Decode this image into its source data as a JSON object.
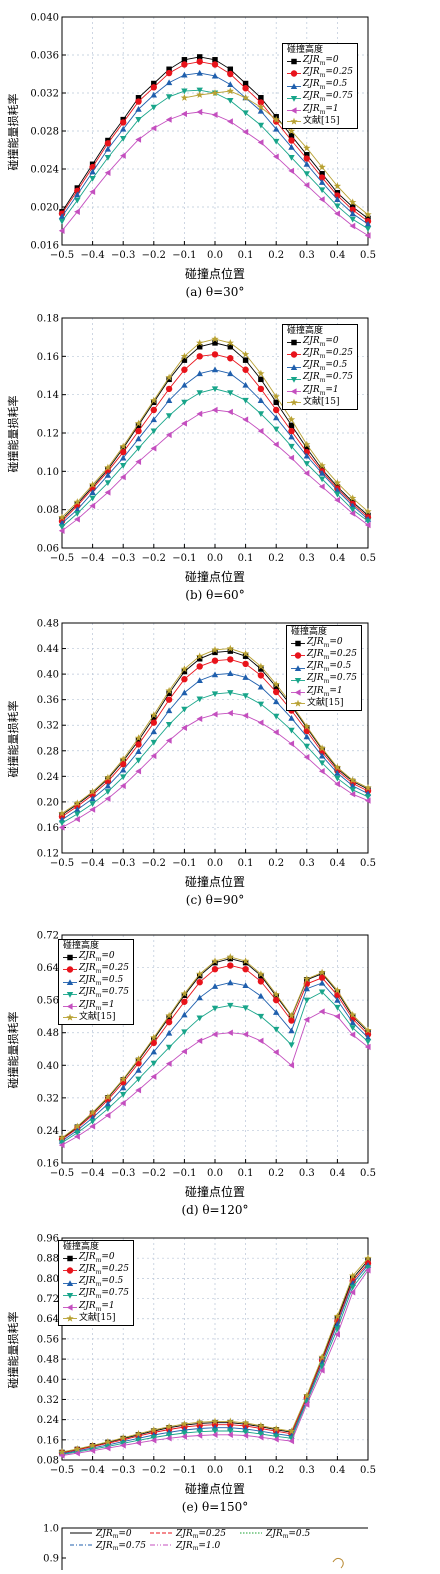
{
  "ylabel": "碰撞能量损耗率",
  "xlabel": "碰撞点位置",
  "legend_title": "碰撞高度",
  "colors": {
    "s0": "#000000",
    "s1": "#e8131b",
    "s2": "#1f5fad",
    "s3": "#18a58a",
    "s4": "#c44fbf",
    "s5": "#b8a132"
  },
  "chart_data": [
    {
      "type": "line",
      "caption": "(a) θ=30°",
      "x": [
        -0.5,
        -0.45,
        -0.4,
        -0.35,
        -0.3,
        -0.25,
        -0.2,
        -0.15,
        -0.1,
        -0.05,
        0.0,
        0.05,
        0.1,
        0.15,
        0.2,
        0.25,
        0.3,
        0.35,
        0.4,
        0.45,
        0.5
      ],
      "ylim": [
        0.016,
        0.04
      ],
      "yticks": [
        "0.016",
        "0.020",
        "0.024",
        "0.028",
        "0.032",
        "0.036",
        "0.040"
      ],
      "xticks": [
        "−0.5",
        "−0.4",
        "−0.3",
        "−0.2",
        "−0.1",
        "0.0",
        "0.1",
        "0.2",
        "0.3",
        "0.4",
        "0.5"
      ],
      "series": [
        {
          "name": "ZJR_m=0",
          "values": [
            0.0195,
            0.022,
            0.0245,
            0.027,
            0.0292,
            0.0315,
            0.033,
            0.0345,
            0.0355,
            0.0358,
            0.0355,
            0.0345,
            0.033,
            0.0315,
            0.0295,
            0.0275,
            0.0255,
            0.0235,
            0.0215,
            0.02,
            0.0188
          ]
        },
        {
          "name": "ZJR_m=0.25",
          "values": [
            0.0193,
            0.0217,
            0.0242,
            0.0267,
            0.0289,
            0.0311,
            0.0326,
            0.0341,
            0.035,
            0.0353,
            0.035,
            0.034,
            0.0325,
            0.031,
            0.029,
            0.027,
            0.0251,
            0.0231,
            0.0212,
            0.0197,
            0.0185
          ]
        },
        {
          "name": "ZJR_m=0.5",
          "values": [
            0.019,
            0.0213,
            0.0237,
            0.0261,
            0.0282,
            0.0303,
            0.0318,
            0.0331,
            0.0339,
            0.0341,
            0.0338,
            0.0329,
            0.0315,
            0.0301,
            0.0282,
            0.0263,
            0.0245,
            0.0226,
            0.0208,
            0.0193,
            0.0182
          ]
        },
        {
          "name": "ZJR_m=0.75",
          "values": [
            0.0185,
            0.0207,
            0.023,
            0.0252,
            0.0272,
            0.0292,
            0.0305,
            0.0316,
            0.0322,
            0.0323,
            0.032,
            0.0312,
            0.0299,
            0.0286,
            0.0269,
            0.0252,
            0.0235,
            0.0218,
            0.0201,
            0.0187,
            0.0177
          ]
        },
        {
          "name": "ZJR_m=1",
          "values": [
            0.0175,
            0.0195,
            0.0216,
            0.0236,
            0.0254,
            0.0271,
            0.0283,
            0.0292,
            0.0298,
            0.03,
            0.0297,
            0.029,
            0.0279,
            0.0268,
            0.0253,
            0.0238,
            0.0223,
            0.0208,
            0.0193,
            0.018,
            0.017
          ]
        },
        {
          "name": "文献[15]",
          "values": [
            null,
            null,
            null,
            null,
            null,
            null,
            null,
            null,
            0.0315,
            0.0318,
            0.032,
            0.0322,
            0.0315,
            0.0305,
            0.0292,
            0.028,
            0.0262,
            0.0242,
            0.0222,
            0.0205,
            0.0192
          ]
        }
      ]
    },
    {
      "type": "line",
      "caption": "(b) θ=60°",
      "x": [
        -0.5,
        -0.45,
        -0.4,
        -0.35,
        -0.3,
        -0.25,
        -0.2,
        -0.15,
        -0.1,
        -0.05,
        0.0,
        0.05,
        0.1,
        0.15,
        0.2,
        0.25,
        0.3,
        0.35,
        0.4,
        0.45,
        0.5
      ],
      "ylim": [
        0.06,
        0.18
      ],
      "yticks": [
        "0.06",
        "0.08",
        "0.10",
        "0.12",
        "0.14",
        "0.16",
        "0.18"
      ],
      "xticks": [
        "−0.5",
        "−0.4",
        "−0.3",
        "−0.2",
        "−0.1",
        "0.0",
        "0.1",
        "0.2",
        "0.3",
        "0.4",
        "0.5"
      ],
      "series": [
        {
          "name": "ZJR_m=0",
          "values": [
            0.075,
            0.083,
            0.092,
            0.101,
            0.112,
            0.124,
            0.136,
            0.148,
            0.158,
            0.165,
            0.167,
            0.165,
            0.158,
            0.148,
            0.136,
            0.124,
            0.112,
            0.101,
            0.092,
            0.084,
            0.077
          ]
        },
        {
          "name": "ZJR_m=0.25",
          "values": [
            0.074,
            0.082,
            0.091,
            0.1,
            0.11,
            0.121,
            0.132,
            0.143,
            0.153,
            0.16,
            0.161,
            0.159,
            0.153,
            0.143,
            0.132,
            0.121,
            0.11,
            0.1,
            0.091,
            0.083,
            0.076
          ]
        },
        {
          "name": "ZJR_m=0.5",
          "values": [
            0.073,
            0.08,
            0.089,
            0.098,
            0.107,
            0.117,
            0.127,
            0.137,
            0.145,
            0.151,
            0.153,
            0.151,
            0.145,
            0.137,
            0.128,
            0.118,
            0.108,
            0.099,
            0.09,
            0.082,
            0.075
          ]
        },
        {
          "name": "ZJR_m=0.75",
          "values": [
            0.071,
            0.078,
            0.086,
            0.094,
            0.103,
            0.112,
            0.121,
            0.129,
            0.136,
            0.141,
            0.143,
            0.141,
            0.137,
            0.13,
            0.122,
            0.113,
            0.104,
            0.096,
            0.088,
            0.08,
            0.074
          ]
        },
        {
          "name": "ZJR_m=1",
          "values": [
            0.069,
            0.075,
            0.082,
            0.089,
            0.097,
            0.105,
            0.112,
            0.119,
            0.125,
            0.13,
            0.132,
            0.131,
            0.127,
            0.121,
            0.114,
            0.107,
            0.099,
            0.092,
            0.085,
            0.078,
            0.072
          ]
        },
        {
          "name": "文献[15]",
          "values": [
            0.076,
            0.084,
            0.093,
            0.102,
            0.113,
            0.125,
            0.137,
            0.149,
            0.16,
            0.167,
            0.169,
            0.167,
            0.161,
            0.151,
            0.139,
            0.127,
            0.114,
            0.103,
            0.094,
            0.086,
            0.079
          ]
        }
      ]
    },
    {
      "type": "line",
      "caption": "(c) θ=90°",
      "x": [
        -0.5,
        -0.45,
        -0.4,
        -0.35,
        -0.3,
        -0.25,
        -0.2,
        -0.15,
        -0.1,
        -0.05,
        0.0,
        0.05,
        0.1,
        0.15,
        0.2,
        0.25,
        0.3,
        0.35,
        0.4,
        0.45,
        0.5
      ],
      "ylim": [
        0.12,
        0.48
      ],
      "yticks": [
        "0.12",
        "0.16",
        "0.20",
        "0.24",
        "0.28",
        "0.32",
        "0.36",
        "0.40",
        "0.44",
        "0.48"
      ],
      "xticks": [
        "−0.5",
        "−0.4",
        "−0.3",
        "−0.2",
        "−0.1",
        "0.0",
        "0.1",
        "0.2",
        "0.3",
        "0.4",
        "0.5"
      ],
      "series": [
        {
          "name": "ZJR_m=0",
          "values": [
            0.18,
            0.196,
            0.214,
            0.236,
            0.264,
            0.296,
            0.332,
            0.37,
            0.404,
            0.424,
            0.434,
            0.436,
            0.428,
            0.408,
            0.38,
            0.35,
            0.316,
            0.282,
            0.252,
            0.232,
            0.22
          ]
        },
        {
          "name": "ZJR_m=0.25",
          "values": [
            0.177,
            0.193,
            0.211,
            0.232,
            0.259,
            0.29,
            0.324,
            0.36,
            0.392,
            0.412,
            0.421,
            0.423,
            0.416,
            0.398,
            0.372,
            0.343,
            0.311,
            0.278,
            0.249,
            0.229,
            0.217
          ]
        },
        {
          "name": "ZJR_m=0.5",
          "values": [
            0.172,
            0.188,
            0.205,
            0.225,
            0.25,
            0.279,
            0.31,
            0.343,
            0.371,
            0.39,
            0.399,
            0.401,
            0.395,
            0.38,
            0.357,
            0.331,
            0.302,
            0.272,
            0.245,
            0.225,
            0.213
          ]
        },
        {
          "name": "ZJR_m=0.75",
          "values": [
            0.167,
            0.181,
            0.197,
            0.216,
            0.239,
            0.265,
            0.293,
            0.321,
            0.345,
            0.361,
            0.369,
            0.371,
            0.366,
            0.353,
            0.334,
            0.312,
            0.287,
            0.261,
            0.237,
            0.219,
            0.208
          ]
        },
        {
          "name": "ZJR_m=1",
          "values": [
            0.16,
            0.173,
            0.188,
            0.205,
            0.225,
            0.248,
            0.272,
            0.296,
            0.316,
            0.33,
            0.337,
            0.339,
            0.335,
            0.324,
            0.309,
            0.291,
            0.27,
            0.248,
            0.228,
            0.212,
            0.202
          ]
        },
        {
          "name": "文献[15]",
          "values": [
            0.182,
            0.198,
            0.216,
            0.238,
            0.267,
            0.3,
            0.336,
            0.374,
            0.408,
            0.428,
            0.438,
            0.44,
            0.432,
            0.412,
            0.384,
            0.353,
            0.318,
            0.284,
            0.254,
            0.234,
            0.222
          ]
        }
      ]
    },
    {
      "type": "line",
      "caption": "(d) θ=120°",
      "x": [
        -0.5,
        -0.45,
        -0.4,
        -0.35,
        -0.3,
        -0.25,
        -0.2,
        -0.15,
        -0.1,
        -0.05,
        0.0,
        0.05,
        0.1,
        0.15,
        0.2,
        0.25,
        0.3,
        0.35,
        0.4,
        0.45,
        0.5
      ],
      "ylim": [
        0.16,
        0.72
      ],
      "yticks": [
        "0.16",
        "0.24",
        "0.32",
        "0.40",
        "0.48",
        "0.56",
        "0.64",
        "0.72"
      ],
      "xticks": [
        "−0.5",
        "−0.4",
        "−0.3",
        "−0.2",
        "−0.1",
        "0.0",
        "0.1",
        "0.2",
        "0.3",
        "0.4",
        "0.5"
      ],
      "series": [
        {
          "name": "ZJR_m=0",
          "values": [
            0.22,
            0.248,
            0.282,
            0.32,
            0.364,
            0.412,
            0.464,
            0.518,
            0.572,
            0.62,
            0.652,
            0.662,
            0.652,
            0.62,
            0.57,
            0.52,
            0.61,
            0.625,
            0.58,
            0.52,
            0.482
          ]
        },
        {
          "name": "ZJR_m=0.25",
          "values": [
            0.218,
            0.245,
            0.278,
            0.315,
            0.358,
            0.405,
            0.455,
            0.506,
            0.556,
            0.604,
            0.636,
            0.645,
            0.636,
            0.606,
            0.56,
            0.51,
            0.6,
            0.615,
            0.572,
            0.514,
            0.476
          ]
        },
        {
          "name": "ZJR_m=0.5",
          "values": [
            0.214,
            0.24,
            0.271,
            0.305,
            0.345,
            0.388,
            0.433,
            0.479,
            0.524,
            0.566,
            0.594,
            0.603,
            0.596,
            0.57,
            0.53,
            0.485,
            0.588,
            0.602,
            0.56,
            0.505,
            0.468
          ]
        },
        {
          "name": "ZJR_m=0.75",
          "values": [
            0.21,
            0.234,
            0.262,
            0.293,
            0.328,
            0.366,
            0.405,
            0.444,
            0.482,
            0.516,
            0.54,
            0.547,
            0.541,
            0.52,
            0.488,
            0.45,
            0.56,
            0.58,
            0.542,
            0.492,
            0.458
          ]
        },
        {
          "name": "ZJR_m=1",
          "values": [
            0.204,
            0.225,
            0.25,
            0.277,
            0.307,
            0.339,
            0.372,
            0.404,
            0.434,
            0.46,
            0.476,
            0.48,
            0.476,
            0.46,
            0.432,
            0.4,
            0.512,
            0.532,
            0.52,
            0.475,
            0.445
          ]
        },
        {
          "name": "文献[15]",
          "values": [
            0.222,
            0.25,
            0.284,
            0.322,
            0.366,
            0.415,
            0.468,
            0.522,
            0.576,
            0.624,
            0.656,
            0.666,
            0.656,
            0.624,
            0.574,
            0.522,
            0.612,
            0.628,
            0.584,
            0.524,
            0.486
          ]
        }
      ]
    },
    {
      "type": "line",
      "caption": "(e) θ=150°",
      "x": [
        -0.5,
        -0.45,
        -0.4,
        -0.35,
        -0.3,
        -0.25,
        -0.2,
        -0.15,
        -0.1,
        -0.05,
        0.0,
        0.05,
        0.1,
        0.15,
        0.2,
        0.25,
        0.3,
        0.35,
        0.4,
        0.45,
        0.5
      ],
      "ylim": [
        0.08,
        0.96
      ],
      "yticks": [
        "0.08",
        "0.16",
        "0.24",
        "0.32",
        "0.40",
        "0.48",
        "0.56",
        "0.64",
        "0.72",
        "0.80",
        "0.88",
        "0.96"
      ],
      "xticks": [
        "−0.5",
        "−0.4",
        "−0.3",
        "−0.2",
        "−0.1",
        "0.0",
        "0.1",
        "0.2",
        "0.3",
        "0.4",
        "0.5"
      ],
      "series": [
        {
          "name": "ZJR_m=0",
          "values": [
            0.11,
            0.122,
            0.136,
            0.15,
            0.165,
            0.18,
            0.195,
            0.208,
            0.218,
            0.225,
            0.228,
            0.228,
            0.222,
            0.212,
            0.2,
            0.19,
            0.33,
            0.48,
            0.64,
            0.8,
            0.87
          ]
        },
        {
          "name": "ZJR_m=0.25",
          "values": [
            0.108,
            0.12,
            0.133,
            0.146,
            0.16,
            0.175,
            0.189,
            0.201,
            0.211,
            0.217,
            0.22,
            0.22,
            0.215,
            0.205,
            0.194,
            0.184,
            0.325,
            0.475,
            0.63,
            0.79,
            0.86
          ]
        },
        {
          "name": "ZJR_m=0.5",
          "values": [
            0.105,
            0.116,
            0.128,
            0.14,
            0.153,
            0.166,
            0.179,
            0.19,
            0.199,
            0.205,
            0.208,
            0.208,
            0.203,
            0.194,
            0.184,
            0.175,
            0.318,
            0.465,
            0.618,
            0.78,
            0.852
          ]
        },
        {
          "name": "ZJR_m=0.75",
          "values": [
            0.102,
            0.112,
            0.123,
            0.134,
            0.146,
            0.158,
            0.169,
            0.179,
            0.187,
            0.192,
            0.195,
            0.195,
            0.191,
            0.183,
            0.174,
            0.166,
            0.31,
            0.452,
            0.6,
            0.765,
            0.842
          ]
        },
        {
          "name": "ZJR_m=1",
          "values": [
            0.098,
            0.107,
            0.117,
            0.127,
            0.138,
            0.148,
            0.158,
            0.166,
            0.173,
            0.177,
            0.18,
            0.18,
            0.177,
            0.17,
            0.162,
            0.155,
            0.3,
            0.435,
            0.578,
            0.745,
            0.832
          ]
        },
        {
          "name": "文献[15]",
          "values": [
            0.112,
            0.124,
            0.138,
            0.152,
            0.168,
            0.184,
            0.199,
            0.212,
            0.223,
            0.23,
            0.233,
            0.233,
            0.227,
            0.216,
            0.204,
            0.194,
            0.335,
            0.488,
            0.65,
            0.81,
            0.88
          ]
        }
      ]
    },
    {
      "type": "line",
      "caption": "",
      "ylim": [
        0.8,
        1.0
      ],
      "yticks": [
        "0.9",
        "1.0"
      ],
      "legend": [
        "ZJR_m=0",
        "ZJR_m=0.25",
        "ZJR_m=0.5",
        "ZJR_m=0.75",
        "ZJR_m=1.0"
      ]
    }
  ]
}
